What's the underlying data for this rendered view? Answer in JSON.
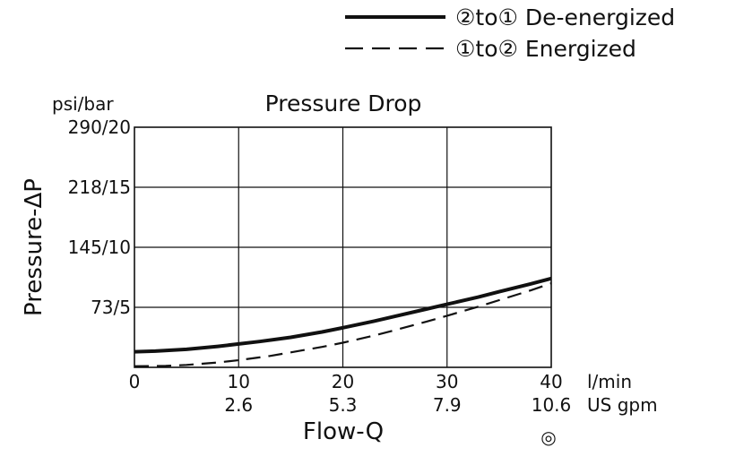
{
  "chart_data": {
    "type": "line",
    "title": "Pressure Drop",
    "ylabel": "Pressure-ΔP",
    "xlabel": "Flow-Q",
    "y_unit_label": "psi/bar",
    "x_unit_label": "l/min",
    "x_secondary_unit_label": "US gpm",
    "xlim": [
      0,
      40
    ],
    "ylim": [
      0,
      20
    ],
    "grid": true,
    "legend_position": "top-right",
    "x_ticks": [
      {
        "value": 0,
        "label": "0",
        "secondary": ""
      },
      {
        "value": 10,
        "label": "10",
        "secondary": "2.6"
      },
      {
        "value": 20,
        "label": "20",
        "secondary": "5.3"
      },
      {
        "value": 30,
        "label": "30",
        "secondary": "7.9"
      },
      {
        "value": 40,
        "label": "40",
        "secondary": "10.6"
      }
    ],
    "y_ticks": [
      {
        "value": 5,
        "label": "73/5"
      },
      {
        "value": 10,
        "label": "145/10"
      },
      {
        "value": 15,
        "label": "218/15"
      },
      {
        "value": 20,
        "label": "290/20"
      }
    ],
    "series": [
      {
        "name": "②to① De-energized",
        "style": "solid",
        "x": [
          0,
          2,
          5,
          8,
          10,
          12,
          15,
          18,
          20,
          23,
          25,
          28,
          30,
          33,
          35,
          38,
          40
        ],
        "y": [
          1.3,
          1.35,
          1.5,
          1.75,
          1.95,
          2.15,
          2.5,
          2.95,
          3.3,
          3.85,
          4.25,
          4.85,
          5.25,
          5.85,
          6.3,
          6.95,
          7.4
        ]
      },
      {
        "name": "①to② Energized",
        "style": "dashed",
        "x": [
          0,
          3,
          5,
          8,
          10,
          13,
          15,
          18,
          20,
          23,
          25,
          28,
          30,
          33,
          35,
          38,
          40
        ],
        "y": [
          0.1,
          0.12,
          0.2,
          0.4,
          0.6,
          0.95,
          1.25,
          1.7,
          2.05,
          2.65,
          3.1,
          3.8,
          4.3,
          5.05,
          5.6,
          6.4,
          7.0
        ]
      }
    ]
  },
  "watermark_symbol": "◎"
}
